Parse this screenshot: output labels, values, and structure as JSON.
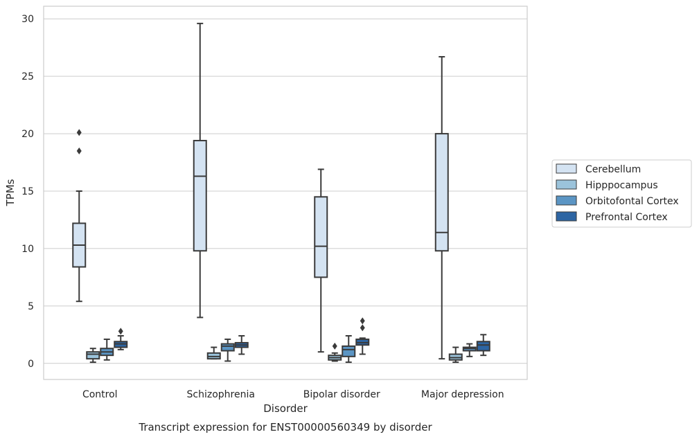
{
  "chart_data": {
    "type": "box",
    "title": "",
    "caption": "Transcript expression for ENST00000560349 by disorder",
    "xlabel": "Disorder",
    "ylabel": "TPMs",
    "ylim": [
      -1.4,
      31.1
    ],
    "yticks": [
      0,
      5,
      10,
      15,
      20,
      25,
      30
    ],
    "grid": "horizontal",
    "legend_position": "right",
    "categories": [
      "Control",
      "Schizophrenia",
      "Bipolar disorder",
      "Major depression"
    ],
    "series": [
      {
        "name": "Cerebellum",
        "color": "#d4e3f2",
        "boxes": [
          {
            "whisker_low": 5.4,
            "q1": 8.4,
            "median": 10.3,
            "q3": 12.2,
            "whisker_high": 15.0,
            "outliers": [
              18.5,
              20.1
            ]
          },
          {
            "whisker_low": 4.0,
            "q1": 9.8,
            "median": 16.3,
            "q3": 19.4,
            "whisker_high": 29.6,
            "outliers": []
          },
          {
            "whisker_low": 1.0,
            "q1": 7.5,
            "median": 10.2,
            "q3": 14.5,
            "whisker_high": 16.9,
            "outliers": []
          },
          {
            "whisker_low": 0.4,
            "q1": 9.8,
            "median": 11.4,
            "q3": 20.0,
            "whisker_high": 26.7,
            "outliers": []
          }
        ]
      },
      {
        "name": "Hipppocampus",
        "color": "#9bc3db",
        "boxes": [
          {
            "whisker_low": 0.1,
            "q1": 0.4,
            "median": 0.8,
            "q3": 1.0,
            "whisker_high": 1.3,
            "outliers": []
          },
          {
            "whisker_low": 0.4,
            "q1": 0.4,
            "median": 0.6,
            "q3": 0.9,
            "whisker_high": 1.4,
            "outliers": []
          },
          {
            "whisker_low": 0.2,
            "q1": 0.3,
            "median": 0.5,
            "q3": 0.7,
            "whisker_high": 0.9,
            "outliers": [
              1.5
            ]
          },
          {
            "whisker_low": 0.1,
            "q1": 0.3,
            "median": 0.5,
            "q3": 0.8,
            "whisker_high": 1.4,
            "outliers": []
          }
        ]
      },
      {
        "name": "Orbitofontal Cortex",
        "color": "#5b95c4",
        "boxes": [
          {
            "whisker_low": 0.3,
            "q1": 0.7,
            "median": 1.0,
            "q3": 1.3,
            "whisker_high": 2.1,
            "outliers": []
          },
          {
            "whisker_low": 0.2,
            "q1": 1.1,
            "median": 1.5,
            "q3": 1.7,
            "whisker_high": 2.1,
            "outliers": []
          },
          {
            "whisker_low": 0.1,
            "q1": 0.6,
            "median": 1.2,
            "q3": 1.5,
            "whisker_high": 2.4,
            "outliers": []
          },
          {
            "whisker_low": 0.6,
            "q1": 1.1,
            "median": 1.3,
            "q3": 1.4,
            "whisker_high": 1.7,
            "outliers": []
          }
        ]
      },
      {
        "name": "Prefrontal Cortex",
        "color": "#2d65a3",
        "boxes": [
          {
            "whisker_low": 1.2,
            "q1": 1.4,
            "median": 1.7,
            "q3": 1.9,
            "whisker_high": 2.4,
            "outliers": [
              2.8
            ]
          },
          {
            "whisker_low": 0.8,
            "q1": 1.4,
            "median": 1.6,
            "q3": 1.8,
            "whisker_high": 2.4,
            "outliers": []
          },
          {
            "whisker_low": 0.8,
            "q1": 1.6,
            "median": 1.8,
            "q3": 2.1,
            "whisker_high": 2.2,
            "outliers": [
              3.1,
              3.7
            ]
          },
          {
            "whisker_low": 0.7,
            "q1": 1.1,
            "median": 1.6,
            "q3": 1.9,
            "whisker_high": 2.5,
            "outliers": []
          }
        ]
      }
    ]
  }
}
